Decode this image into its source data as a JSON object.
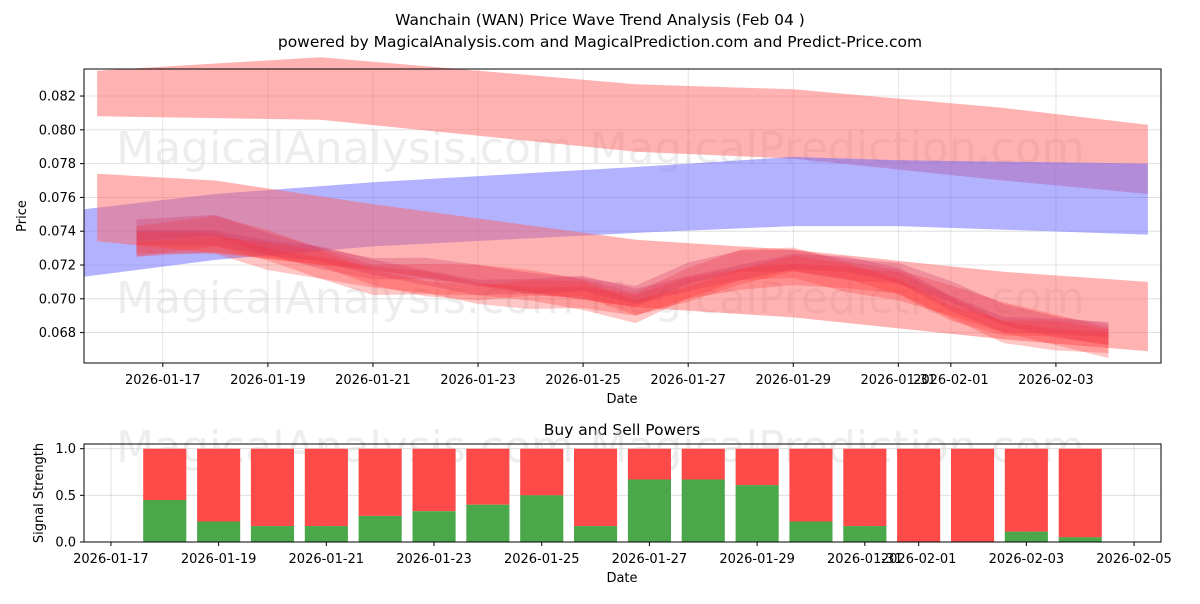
{
  "chart_data": [
    {
      "type": "area",
      "title": "Wanchain (WAN) Price Wave Trend Analysis (Feb 04 )",
      "subtitle": "powered by MagicalAnalysis.com and MagicalPrediction.com and Predict-Price.com",
      "xlabel": "Date",
      "ylabel": "Price",
      "xlim": [
        "2026-01-15 12:00",
        "2026-02-05 00:00"
      ],
      "ylim": [
        0.0662,
        0.0836
      ],
      "x_ticks": [
        "2026-01-17",
        "2026-01-19",
        "2026-01-21",
        "2026-01-23",
        "2026-01-25",
        "2026-01-27",
        "2026-01-29",
        "2026-01-31",
        "2026-02-01",
        "2026-02-03"
      ],
      "x_tick_dates": [
        "2026-01-17",
        "2026-01-19",
        "2026-01-21",
        "2026-01-23",
        "2026-01-25",
        "2026-01-27",
        "2026-01-29",
        "2026-01-31",
        "2026-02-01",
        "2026-02-03"
      ],
      "y_ticks": [
        "0.068",
        "0.070",
        "0.072",
        "0.074",
        "0.076",
        "0.078",
        "0.080",
        "0.082"
      ],
      "y_tick_values": [
        0.068,
        0.07,
        0.072,
        0.074,
        0.076,
        0.078,
        0.08,
        0.082
      ],
      "grid": true,
      "bands": [
        {
          "name": "upper red trend band",
          "color": "#ff6666",
          "x": [
            "2026-01-15 18:00",
            "2026-01-20",
            "2026-01-26",
            "2026-01-29",
            "2026-02-02",
            "2026-02-04 18:00"
          ],
          "upper": [
            0.0835,
            0.0843,
            0.0827,
            0.0824,
            0.0813,
            0.0803
          ],
          "lower": [
            0.0808,
            0.0806,
            0.0787,
            0.0783,
            0.077,
            0.0762
          ]
        },
        {
          "name": "blue trend band",
          "color": "#6666ff",
          "x": [
            "2026-01-15 12:00",
            "2026-01-18",
            "2026-01-21",
            "2026-01-26",
            "2026-01-29",
            "2026-01-31",
            "2026-02-04 18:00"
          ],
          "upper": [
            0.0753,
            0.0762,
            0.0769,
            0.0778,
            0.0784,
            0.0782,
            0.078
          ],
          "lower": [
            0.0713,
            0.0723,
            0.0731,
            0.0739,
            0.0743,
            0.0743,
            0.0738
          ]
        },
        {
          "name": "lower red trend band",
          "color": "#ff6666",
          "x": [
            "2026-01-15 18:00",
            "2026-01-18",
            "2026-01-21",
            "2026-01-26",
            "2026-01-29",
            "2026-02-02",
            "2026-02-04 18:00"
          ],
          "upper": [
            0.0774,
            0.077,
            0.0756,
            0.0735,
            0.0729,
            0.0716,
            0.071
          ],
          "lower": [
            0.0734,
            0.0727,
            0.0717,
            0.0695,
            0.0689,
            0.0676,
            0.0669
          ]
        }
      ],
      "waves": [
        {
          "name": "price wave",
          "color": "#ff3333",
          "x": [
            "2026-01-16 12:00",
            "2026-01-18",
            "2026-01-19",
            "2026-01-20",
            "2026-01-21",
            "2026-01-22",
            "2026-01-23",
            "2026-01-24",
            "2026-01-25",
            "2026-01-26",
            "2026-01-27",
            "2026-01-28",
            "2026-01-29",
            "2026-01-30",
            "2026-01-31",
            "2026-02-01",
            "2026-02-02",
            "2026-02-03",
            "2026-02-04"
          ],
          "y": [
            0.0734,
            0.0737,
            0.073,
            0.0723,
            0.0714,
            0.0711,
            0.0708,
            0.0707,
            0.0705,
            0.0697,
            0.0708,
            0.0717,
            0.0721,
            0.0716,
            0.071,
            0.0697,
            0.0686,
            0.0682,
            0.0677
          ],
          "spread": 0.0009
        }
      ]
    },
    {
      "type": "bar",
      "title": "Buy and Sell Powers",
      "xlabel": "Date",
      "ylabel": "Signal Strength",
      "xlim": [
        "2026-01-16 12:00",
        "2026-02-05 12:00"
      ],
      "ylim": [
        0,
        1.05
      ],
      "x_ticks": [
        "2026-01-17",
        "2026-01-19",
        "2026-01-21",
        "2026-01-23",
        "2026-01-25",
        "2026-01-27",
        "2026-01-29",
        "2026-01-31",
        "2026-02-01",
        "2026-02-03",
        "2026-02-05"
      ],
      "x_tick_dates": [
        "2026-01-17",
        "2026-01-19",
        "2026-01-21",
        "2026-01-23",
        "2026-01-25",
        "2026-01-27",
        "2026-01-29",
        "2026-01-31",
        "2026-02-01",
        "2026-02-03",
        "2026-02-05"
      ],
      "y_ticks": [
        "0.0",
        "0.5",
        "1.0"
      ],
      "y_tick_values": [
        0.0,
        0.5,
        1.0
      ],
      "grid": true,
      "categories": [
        "2026-01-18",
        "2026-01-19",
        "2026-01-20",
        "2026-01-21",
        "2026-01-22",
        "2026-01-23",
        "2026-01-24",
        "2026-01-25",
        "2026-01-26",
        "2026-01-27",
        "2026-01-28",
        "2026-01-29",
        "2026-01-30",
        "2026-01-31",
        "2026-02-01",
        "2026-02-02",
        "2026-02-03",
        "2026-02-04"
      ],
      "series": [
        {
          "name": "Buy",
          "color": "#4aa84a",
          "values": [
            0.45,
            0.22,
            0.17,
            0.17,
            0.28,
            0.33,
            0.4,
            0.5,
            0.17,
            0.67,
            0.67,
            0.61,
            0.22,
            0.17,
            0.0,
            0.0,
            0.11,
            0.05
          ]
        },
        {
          "name": "Sell",
          "color": "#ff4a4a",
          "values": [
            0.55,
            0.78,
            0.83,
            0.83,
            0.72,
            0.67,
            0.6,
            0.5,
            0.83,
            0.33,
            0.33,
            0.39,
            0.78,
            0.83,
            1.0,
            1.0,
            0.89,
            0.95
          ]
        }
      ]
    }
  ],
  "watermarks": [
    "MagicalAnalysis.com",
    "MagicalPrediction.com"
  ]
}
